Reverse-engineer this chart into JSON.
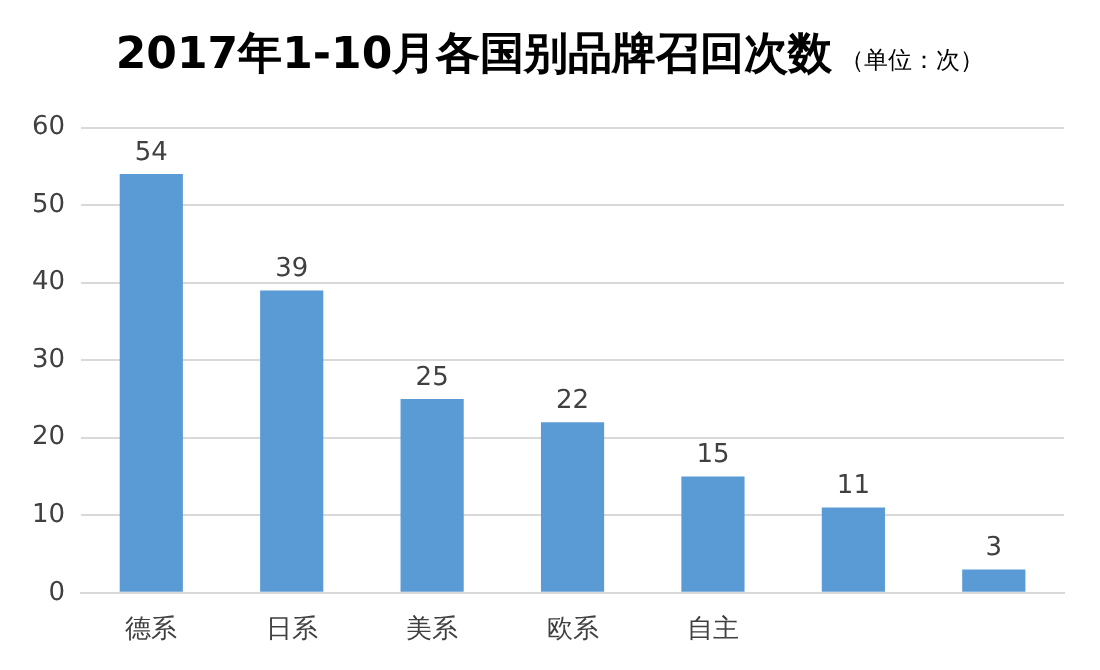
{
  "chart_data": {
    "type": "bar",
    "title": "2017年1-10月各国别品牌召回次数",
    "subtitle": "（单位：次）",
    "categories": [
      "德系",
      "日系",
      "美系",
      "欧系",
      "自主",
      null,
      null
    ],
    "values": [
      54,
      39,
      25,
      22,
      15,
      11,
      3
    ],
    "color": "#5b9bd5",
    "ylim": [
      0,
      60
    ],
    "yticks": [
      0,
      10,
      20,
      30,
      40,
      50,
      60
    ],
    "grid": "y",
    "data_labels": true,
    "legend": false
  }
}
